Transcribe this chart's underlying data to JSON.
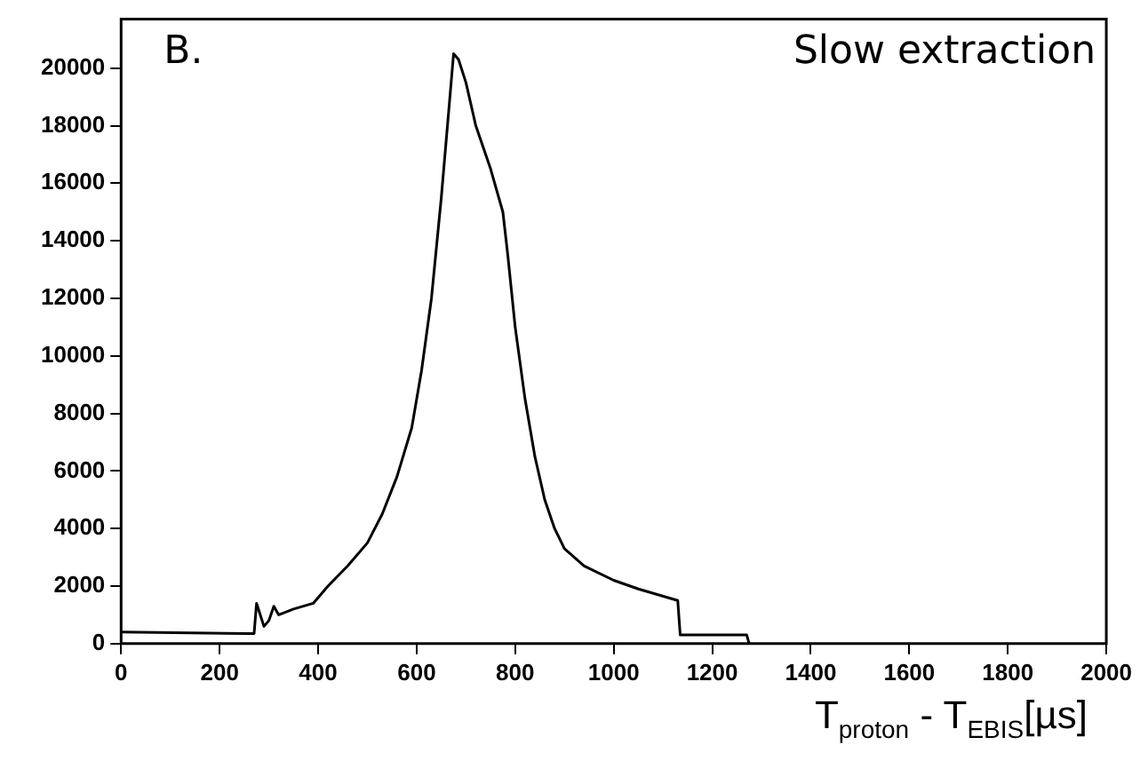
{
  "chart_data": {
    "type": "line",
    "xlabel": "T$_{proton}$ - T$_{EBIS}$[µs]",
    "annotations": [
      "B.",
      "Slow extraction"
    ],
    "series": [
      {
        "color": "#000000",
        "x": [
          0,
          260,
          270,
          275,
          290,
          300,
          310,
          320,
          350,
          390,
          420,
          460,
          500,
          530,
          560,
          590,
          610,
          630,
          650,
          665,
          675,
          685,
          700,
          720,
          750,
          775,
          785,
          800,
          820,
          840,
          860,
          880,
          900,
          940,
          1000,
          1050,
          1130,
          1135,
          1270,
          1275
        ],
        "values": [
          400,
          350,
          350,
          1400,
          600,
          800,
          1300,
          1000,
          1200,
          1400,
          2000,
          2700,
          3500,
          4500,
          5800,
          7500,
          9500,
          12000,
          15500,
          18500,
          20500,
          20300,
          19500,
          18000,
          16500,
          15000,
          13500,
          11000,
          8500,
          6500,
          5000,
          4000,
          3300,
          2700,
          2200,
          1900,
          1500,
          300,
          300,
          0
        ]
      }
    ],
    "xlim": [
      0,
      2000
    ],
    "xticks": [
      0,
      200,
      400,
      600,
      800,
      1000,
      1200,
      1400,
      1600,
      1800,
      2000
    ],
    "ylim": [
      0,
      21700
    ],
    "yticks": [
      0,
      2000,
      4000,
      6000,
      8000,
      10000,
      12000,
      14000,
      16000,
      18000,
      20000
    ],
    "grid": false,
    "legend": false,
    "marker": "none",
    "line_style": "solid"
  }
}
